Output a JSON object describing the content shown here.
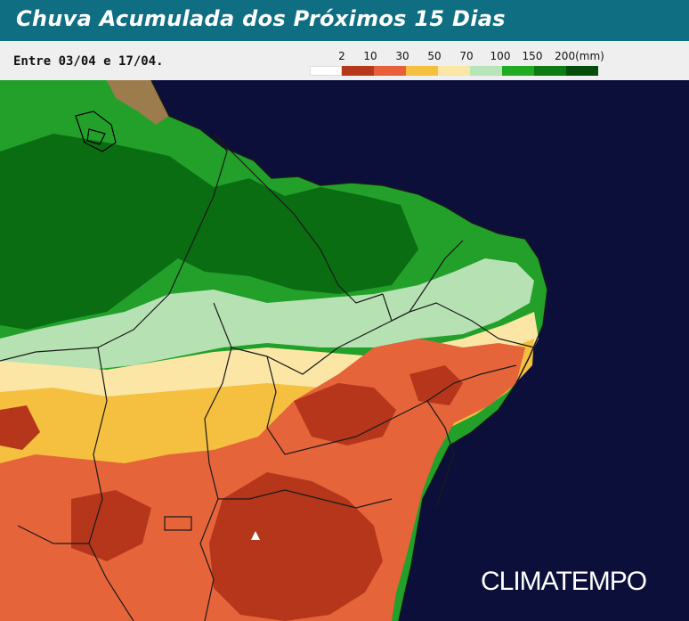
{
  "header": {
    "title": "Chuva Acumulada dos Próximos 15 Dias"
  },
  "subheader": {
    "date_range": "Entre 03/04 e 17/04."
  },
  "legend": {
    "labels": [
      "2",
      "10",
      "30",
      "50",
      "70",
      "100",
      "150",
      "200(mm)"
    ],
    "bins": [
      {
        "color": "#ffffff"
      },
      {
        "color": "#b5381a"
      },
      {
        "color": "#e8603a"
      },
      {
        "color": "#f5c040"
      },
      {
        "color": "#fbe6a6"
      },
      {
        "color": "#b8e5b8"
      },
      {
        "color": "#22aa22"
      },
      {
        "color": "#0e7a12"
      },
      {
        "color": "#054d0a"
      }
    ]
  },
  "brand": {
    "logo_text": "CLIMATEMPO"
  },
  "map_colors": {
    "ocean": "#0b0f3a",
    "dark_green": "#0a6d12",
    "green": "#22a02a",
    "light_green": "#b6e2b3",
    "pale_yellow": "#fbe6a6",
    "yellow": "#f5c040",
    "orange": "#e6643a",
    "red": "#b5361a",
    "brown_land": "#9c7c4c",
    "border": "#1a1a1a"
  }
}
